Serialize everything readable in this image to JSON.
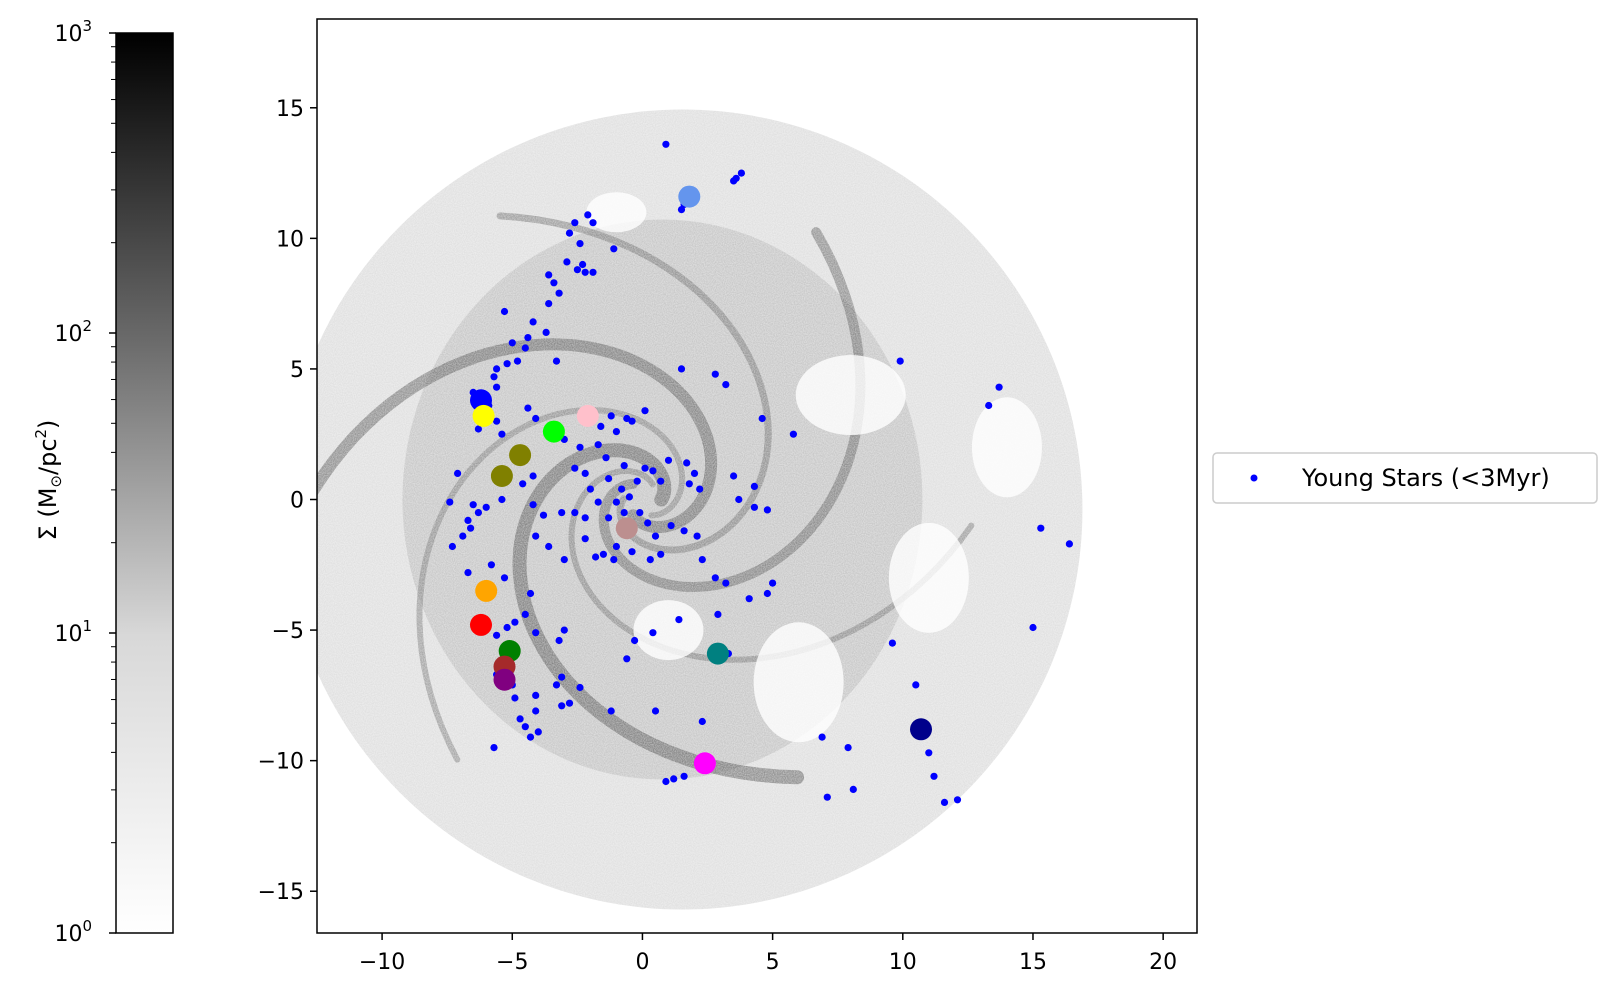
{
  "chart_data": {
    "type": "scatter",
    "title": "",
    "xlabel": "",
    "ylabel": "",
    "xlim": [
      -12.5,
      21.3
    ],
    "ylim": [
      -16.6,
      18.4
    ],
    "xticks": [
      -10,
      -5,
      0,
      5,
      10,
      15,
      20
    ],
    "yticks": [
      -15,
      -10,
      -5,
      0,
      5,
      10,
      15
    ],
    "xtick_labels": [
      "−10",
      "−5",
      "0",
      "5",
      "10",
      "15",
      "20"
    ],
    "ytick_labels": [
      "−15",
      "−10",
      "−5",
      "0",
      "5",
      "10",
      "15"
    ],
    "background": "grayscale gas surface density map of a spiral galaxy (log scale)",
    "colorbar": {
      "label_main": "Σ (M",
      "label_sun": "⊙",
      "label_unit": "/pc",
      "label_exp": "2",
      "label_close": ")",
      "scale": "log",
      "range": [
        1,
        1000
      ],
      "ticks": [
        {
          "value": 1,
          "base": "10",
          "exp": "0"
        },
        {
          "value": 10,
          "base": "10",
          "exp": "1"
        },
        {
          "value": 100,
          "base": "10",
          "exp": "2"
        },
        {
          "value": 1000,
          "base": "10",
          "exp": "3"
        }
      ],
      "colors": [
        "#ffffff",
        "#000000"
      ]
    },
    "legend": {
      "placement": "center-right outside",
      "entries": [
        {
          "label": "Young Stars (<3Myr)",
          "color": "#0000ff",
          "marker": "dot"
        }
      ]
    },
    "series": [
      {
        "name": "Young Stars (<3Myr)",
        "color": "#0000ff",
        "points": [
          [
            0.9,
            13.6
          ],
          [
            1.6,
            11.3
          ],
          [
            1.8,
            11.6
          ],
          [
            1.5,
            11.1
          ],
          [
            2.0,
            11.8
          ],
          [
            3.6,
            12.3
          ],
          [
            3.8,
            12.5
          ],
          [
            3.5,
            12.2
          ],
          [
            -2.6,
            10.6
          ],
          [
            -2.1,
            10.9
          ],
          [
            -1.9,
            10.6
          ],
          [
            -2.8,
            10.2
          ],
          [
            -2.4,
            9.8
          ],
          [
            -1.1,
            9.6
          ],
          [
            -2.9,
            9.1
          ],
          [
            -2.3,
            9.0
          ],
          [
            -2.5,
            8.8
          ],
          [
            -2.2,
            8.7
          ],
          [
            -1.9,
            8.7
          ],
          [
            -3.6,
            8.6
          ],
          [
            -3.4,
            8.3
          ],
          [
            -3.2,
            7.9
          ],
          [
            -3.6,
            7.5
          ],
          [
            -5.3,
            7.2
          ],
          [
            -4.2,
            6.8
          ],
          [
            -3.7,
            6.4
          ],
          [
            -4.4,
            6.2
          ],
          [
            -4.5,
            5.8
          ],
          [
            -5.0,
            6.0
          ],
          [
            -4.8,
            5.3
          ],
          [
            -5.2,
            5.2
          ],
          [
            -5.6,
            5.0
          ],
          [
            -3.3,
            5.3
          ],
          [
            -5.7,
            4.7
          ],
          [
            -5.6,
            4.3
          ],
          [
            -6.5,
            4.1
          ],
          [
            -6.3,
            3.9
          ],
          [
            -5.9,
            3.6
          ],
          [
            -6.2,
            3.3
          ],
          [
            -5.6,
            3.0
          ],
          [
            -6.3,
            2.7
          ],
          [
            -5.4,
            2.5
          ],
          [
            -4.4,
            3.5
          ],
          [
            -4.1,
            3.1
          ],
          [
            -3.0,
            2.3
          ],
          [
            -2.4,
            2.0
          ],
          [
            -1.7,
            2.1
          ],
          [
            -1.6,
            2.8
          ],
          [
            -1.0,
            2.6
          ],
          [
            -1.2,
            3.2
          ],
          [
            -0.6,
            3.1
          ],
          [
            -0.4,
            3.0
          ],
          [
            0.1,
            3.4
          ],
          [
            -2.2,
            3.3
          ],
          [
            -1.4,
            1.6
          ],
          [
            -2.6,
            1.2
          ],
          [
            -2.2,
            1.0
          ],
          [
            -2.0,
            0.4
          ],
          [
            -1.3,
            0.8
          ],
          [
            -0.7,
            1.3
          ],
          [
            -0.8,
            0.4
          ],
          [
            -0.2,
            0.7
          ],
          [
            0.1,
            1.2
          ],
          [
            0.4,
            1.1
          ],
          [
            0.7,
            0.7
          ],
          [
            1.0,
            1.5
          ],
          [
            1.7,
            1.4
          ],
          [
            1.8,
            0.6
          ],
          [
            2.2,
            0.4
          ],
          [
            2.0,
            1.0
          ],
          [
            -0.5,
            0.1
          ],
          [
            -1.0,
            -0.1
          ],
          [
            -1.7,
            -0.1
          ],
          [
            -0.1,
            -0.5
          ],
          [
            -0.7,
            -0.5
          ],
          [
            -1.3,
            -0.7
          ],
          [
            -2.2,
            -0.7
          ],
          [
            -2.6,
            -0.5
          ],
          [
            -3.1,
            -0.5
          ],
          [
            -3.8,
            -0.6
          ],
          [
            -4.2,
            -0.2
          ],
          [
            -4.2,
            0.9
          ],
          [
            -4.6,
            0.6
          ],
          [
            -5.4,
            0.0
          ],
          [
            -6.0,
            -0.3
          ],
          [
            -6.5,
            -0.2
          ],
          [
            -6.3,
            -0.5
          ],
          [
            -6.7,
            -0.8
          ],
          [
            -6.6,
            -1.1
          ],
          [
            -6.9,
            -1.4
          ],
          [
            -7.4,
            -0.1
          ],
          [
            -7.1,
            1.0
          ],
          [
            -7.3,
            -1.8
          ],
          [
            -6.7,
            -2.8
          ],
          [
            -5.8,
            -2.5
          ],
          [
            -5.3,
            -3.0
          ],
          [
            -4.3,
            -3.6
          ],
          [
            -4.5,
            -4.4
          ],
          [
            -4.9,
            -4.7
          ],
          [
            -5.2,
            -4.9
          ],
          [
            -5.6,
            -5.2
          ],
          [
            -4.1,
            -5.1
          ],
          [
            -3.0,
            -5.0
          ],
          [
            -3.2,
            -5.4
          ],
          [
            -4.1,
            -1.4
          ],
          [
            -3.6,
            -1.8
          ],
          [
            -3.0,
            -2.3
          ],
          [
            -2.2,
            -1.5
          ],
          [
            -1.0,
            -1.8
          ],
          [
            -1.5,
            -2.1
          ],
          [
            -1.8,
            -2.2
          ],
          [
            -1.1,
            -2.3
          ],
          [
            -0.4,
            -2.0
          ],
          [
            0.3,
            -2.3
          ],
          [
            0.7,
            -2.1
          ],
          [
            0.5,
            -1.4
          ],
          [
            0.2,
            -0.9
          ],
          [
            1.1,
            -1.0
          ],
          [
            1.6,
            -1.2
          ],
          [
            2.1,
            -1.4
          ],
          [
            2.3,
            -2.3
          ],
          [
            2.8,
            -3.0
          ],
          [
            3.2,
            -3.2
          ],
          [
            2.9,
            -4.4
          ],
          [
            4.1,
            -3.8
          ],
          [
            4.8,
            -3.6
          ],
          [
            5.0,
            -3.2
          ],
          [
            4.8,
            -0.4
          ],
          [
            4.3,
            0.5
          ],
          [
            3.5,
            0.9
          ],
          [
            3.7,
            0.0
          ],
          [
            4.3,
            -0.3
          ],
          [
            1.5,
            5.0
          ],
          [
            2.8,
            4.8
          ],
          [
            3.2,
            4.4
          ],
          [
            4.6,
            3.1
          ],
          [
            5.8,
            2.5
          ],
          [
            9.9,
            5.3
          ],
          [
            13.3,
            3.6
          ],
          [
            13.7,
            4.3
          ],
          [
            15.3,
            -1.1
          ],
          [
            16.4,
            -1.7
          ],
          [
            15.0,
            -4.9
          ],
          [
            9.6,
            -5.5
          ],
          [
            10.5,
            -7.1
          ],
          [
            10.8,
            -9.0
          ],
          [
            11.0,
            -9.7
          ],
          [
            11.2,
            -10.6
          ],
          [
            11.6,
            -11.6
          ],
          [
            12.1,
            -11.5
          ],
          [
            7.9,
            -9.5
          ],
          [
            8.1,
            -11.1
          ],
          [
            7.1,
            -11.4
          ],
          [
            6.9,
            -9.1
          ],
          [
            2.3,
            -8.5
          ],
          [
            1.6,
            -10.6
          ],
          [
            1.2,
            -10.7
          ],
          [
            0.9,
            -10.8
          ],
          [
            0.5,
            -8.1
          ],
          [
            -1.2,
            -8.1
          ],
          [
            -2.4,
            -7.2
          ],
          [
            -2.8,
            -7.8
          ],
          [
            -3.1,
            -7.9
          ],
          [
            -3.1,
            -6.8
          ],
          [
            -3.3,
            -7.1
          ],
          [
            -4.1,
            -7.5
          ],
          [
            -4.1,
            -8.1
          ],
          [
            -4.0,
            -8.9
          ],
          [
            -4.3,
            -9.1
          ],
          [
            -4.5,
            -8.7
          ],
          [
            -4.7,
            -8.4
          ],
          [
            -4.9,
            -7.6
          ],
          [
            -5.0,
            -7.1
          ],
          [
            -5.6,
            -6.7
          ],
          [
            -5.7,
            -9.5
          ],
          [
            -0.6,
            -6.1
          ],
          [
            -0.3,
            -5.4
          ],
          [
            0.4,
            -5.1
          ],
          [
            1.4,
            -4.6
          ],
          [
            3.3,
            -5.9
          ]
        ]
      }
    ],
    "clusters": [
      {
        "x": 1.8,
        "y": 11.6,
        "color": "#6495ed"
      },
      {
        "x": -6.2,
        "y": 3.8,
        "color": "#0000ff"
      },
      {
        "x": -6.1,
        "y": 3.2,
        "color": "#ffff00"
      },
      {
        "x": -3.4,
        "y": 2.6,
        "color": "#00ff00"
      },
      {
        "x": -2.1,
        "y": 3.2,
        "color": "#ffc0cb"
      },
      {
        "x": -4.7,
        "y": 1.7,
        "color": "#808000"
      },
      {
        "x": -5.4,
        "y": 0.9,
        "color": "#808000"
      },
      {
        "x": -0.6,
        "y": -1.1,
        "color": "#bc8f8f"
      },
      {
        "x": -6.0,
        "y": -3.5,
        "color": "#ffa500"
      },
      {
        "x": -6.2,
        "y": -4.8,
        "color": "#ff0000"
      },
      {
        "x": -5.1,
        "y": -5.8,
        "color": "#008000"
      },
      {
        "x": -5.3,
        "y": -6.4,
        "color": "#a52a2a"
      },
      {
        "x": -5.3,
        "y": -6.9,
        "color": "#800080"
      },
      {
        "x": 2.9,
        "y": -5.9,
        "color": "#008080"
      },
      {
        "x": 10.7,
        "y": -8.8,
        "color": "#00008b"
      },
      {
        "x": 2.4,
        "y": -10.1,
        "color": "#ff00ff"
      }
    ]
  }
}
